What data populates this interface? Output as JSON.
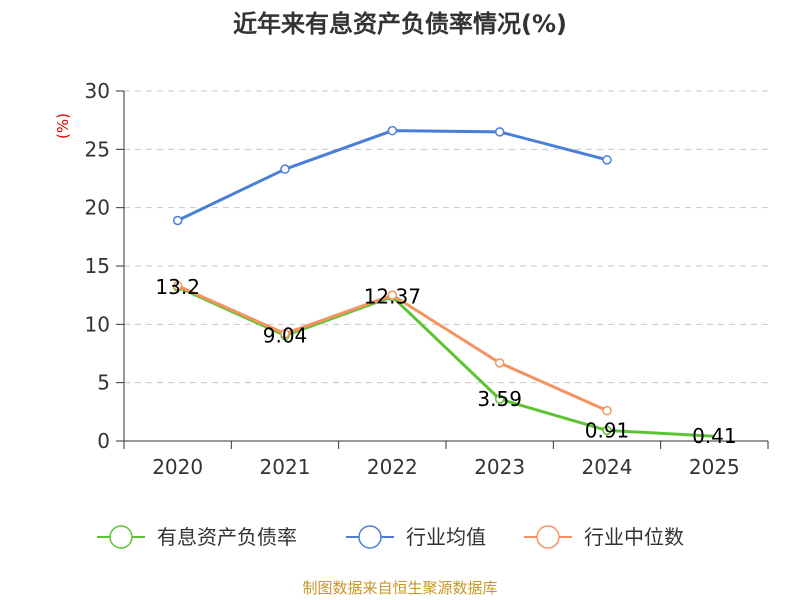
{
  "chart_data": {
    "type": "line",
    "title": "近年来有息资产负债率情况(%)",
    "unit_label": "(%)",
    "categories": [
      "2020",
      "2021",
      "2022",
      "2023",
      "2024",
      "2025"
    ],
    "ylim": [
      0,
      30
    ],
    "yticks": [
      0,
      5,
      10,
      15,
      20,
      25,
      30
    ],
    "grid": true,
    "legend_position": "bottom",
    "series": [
      {
        "name": "有息资产负债率",
        "color": "#5cc434",
        "values": [
          13.2,
          9.04,
          12.37,
          3.59,
          0.91,
          0.41
        ],
        "labels": [
          "13.2",
          "9.04",
          "12.37",
          "3.59",
          "0.91",
          "0.41"
        ]
      },
      {
        "name": "行业均值",
        "color": "#4a7fd8",
        "values": [
          18.9,
          23.3,
          26.6,
          26.5,
          24.1,
          null
        ]
      },
      {
        "name": "行业中位数",
        "color": "#f59360",
        "values": [
          13.3,
          9.2,
          12.5,
          6.7,
          2.6,
          null
        ]
      }
    ],
    "source": "制图数据来自恒生聚源数据库"
  }
}
